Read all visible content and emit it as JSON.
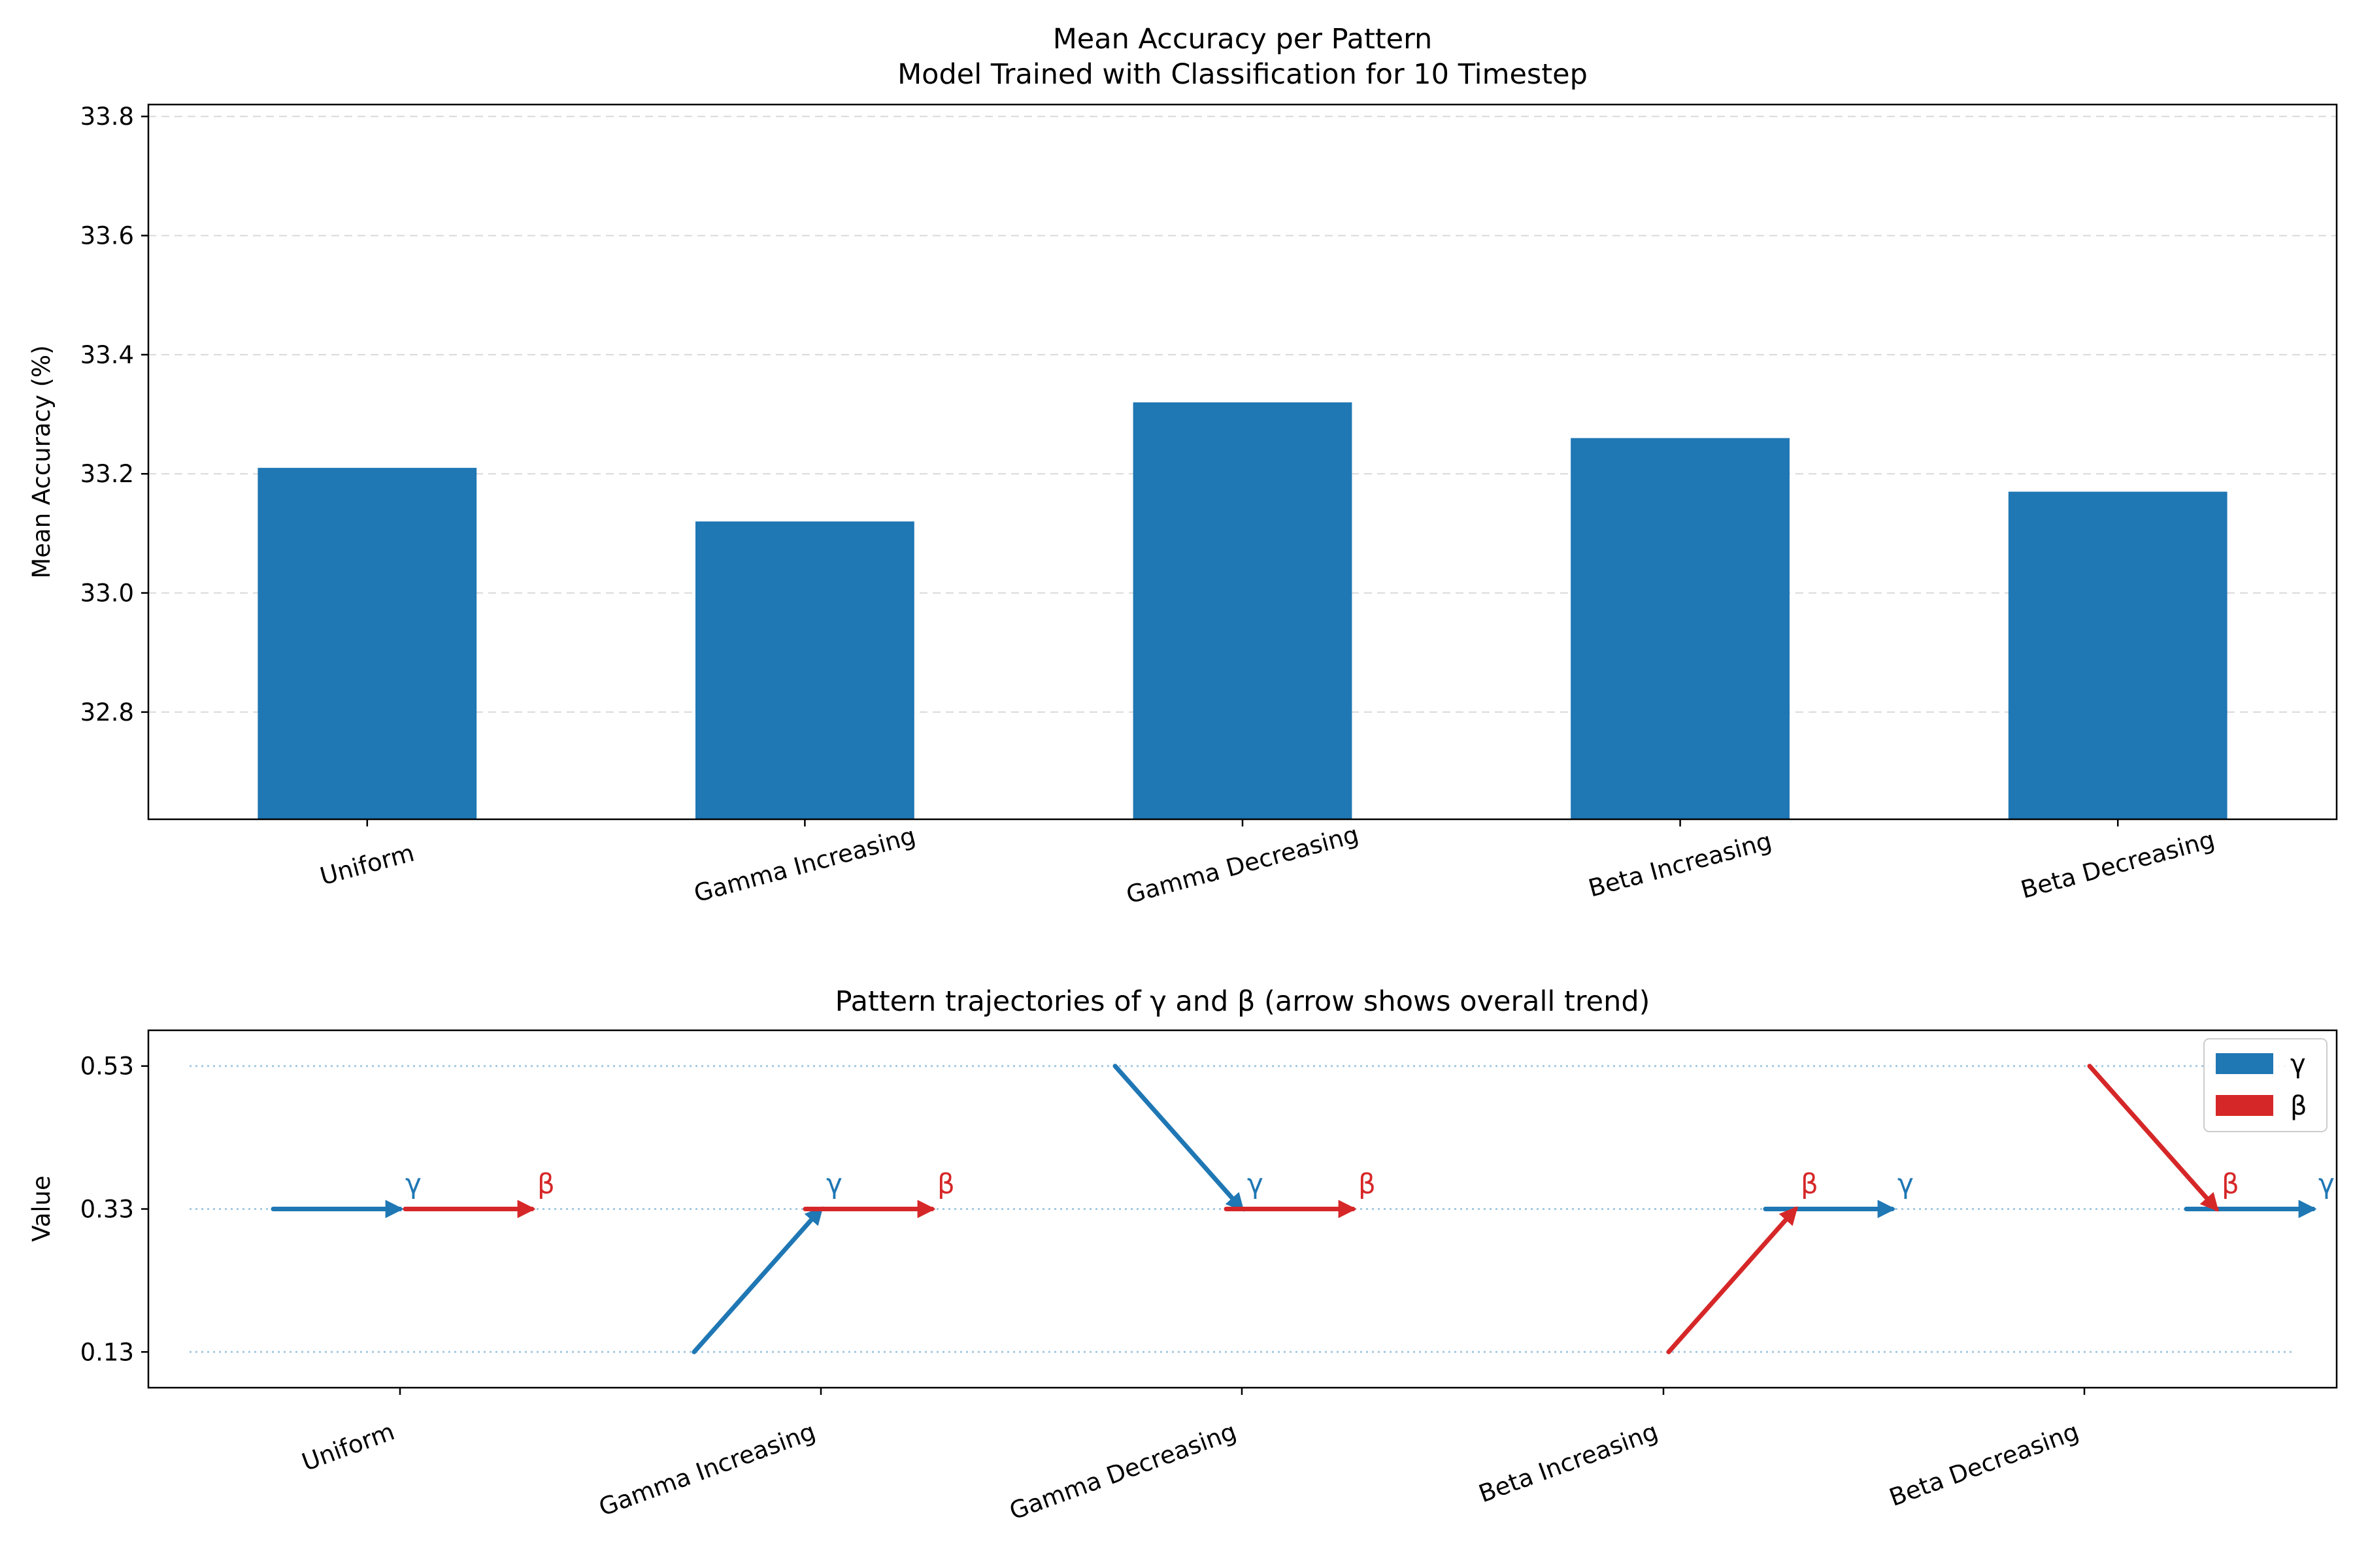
{
  "chart_data": [
    {
      "type": "bar",
      "title": "Mean Accuracy per Pattern",
      "subtitle": "Model Trained with Classification for 10 Timestep",
      "xlabel": "",
      "ylabel": "Mean Accuracy (%)",
      "categories": [
        "Uniform",
        "Gamma Increasing",
        "Gamma Decreasing",
        "Beta Increasing",
        "Beta Decreasing"
      ],
      "values": [
        33.21,
        33.12,
        33.32,
        33.26,
        33.17
      ],
      "ylim": [
        32.62,
        33.82
      ],
      "yticks": [
        "32.8",
        "33.0",
        "33.2",
        "33.4",
        "33.6",
        "33.8"
      ],
      "grid": "y-dashed",
      "color": "#1f77b4"
    },
    {
      "type": "line",
      "title": "Pattern trajectories of γ and β (arrow shows overall trend)",
      "xlabel": "",
      "ylabel": "Value",
      "categories": [
        "Uniform",
        "Gamma Increasing",
        "Gamma Decreasing",
        "Beta Increasing",
        "Beta Decreasing"
      ],
      "yticks": [
        "0.13",
        "0.33",
        "0.53"
      ],
      "ylim": [
        0.08,
        0.58
      ],
      "legend": {
        "position": "top-right",
        "entries": [
          "γ",
          "β"
        ]
      },
      "colors": {
        "γ": "#1f77b4",
        "β": "#d62728"
      },
      "series": [
        {
          "name": "γ",
          "start": [
            0.33,
            0.13,
            0.53,
            0.33,
            0.33
          ],
          "end": [
            0.33,
            0.33,
            0.33,
            0.33,
            0.33
          ]
        },
        {
          "name": "β",
          "start": [
            0.33,
            0.33,
            0.33,
            0.13,
            0.53
          ],
          "end": [
            0.33,
            0.33,
            0.33,
            0.33,
            0.33
          ]
        }
      ]
    }
  ]
}
